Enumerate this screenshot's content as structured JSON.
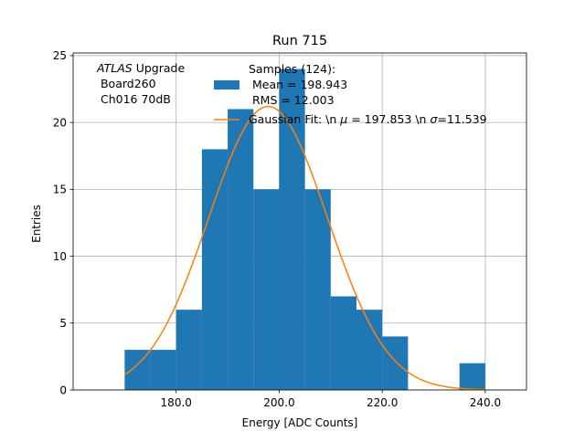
{
  "chart_data": {
    "type": "bar",
    "title": "Run 715",
    "xlabel": "Energy [ADC Counts]",
    "ylabel": "Entries",
    "xlim": [
      160,
      248
    ],
    "ylim": [
      0,
      25.2
    ],
    "grid": true,
    "xticks": [
      180,
      200,
      220,
      240
    ],
    "xtick_labels": [
      "180.0",
      "200.0",
      "220.0",
      "240.0"
    ],
    "yticks": [
      0,
      5,
      10,
      15,
      20,
      25
    ],
    "ytick_labels": [
      "0",
      "5",
      "10",
      "15",
      "20",
      "25"
    ],
    "histogram": {
      "bin_edges": [
        170,
        175,
        180,
        185,
        190,
        195,
        200,
        205,
        210,
        215,
        220,
        225,
        230,
        235,
        240
      ],
      "counts": [
        3,
        3,
        6,
        18,
        21,
        15,
        24,
        15,
        7,
        6,
        4,
        0,
        0,
        2
      ],
      "color": "#1f77b4"
    },
    "fit": {
      "type": "gaussian",
      "mu": 197.853,
      "sigma": 11.539,
      "amplitude": 21.2,
      "x_range": [
        170,
        240
      ],
      "color": "#ff7f0e"
    },
    "annotation": {
      "atlas": "ATLAS",
      "upgrade": " Upgrade",
      "line2": " Board260",
      "line3": " Ch016 70dB"
    },
    "legend": {
      "placement": "top-center",
      "header": "Samples (124):",
      "hist_line1": " Mean = 198.943",
      "hist_line2": " RMS = 12.003",
      "fit_pre": "Gaussian Fit: \\n ",
      "fit_mu_sym": "μ",
      "fit_mid": " = 197.853 \\n ",
      "fit_sigma_sym": "σ",
      "fit_post": "=11.539"
    }
  }
}
